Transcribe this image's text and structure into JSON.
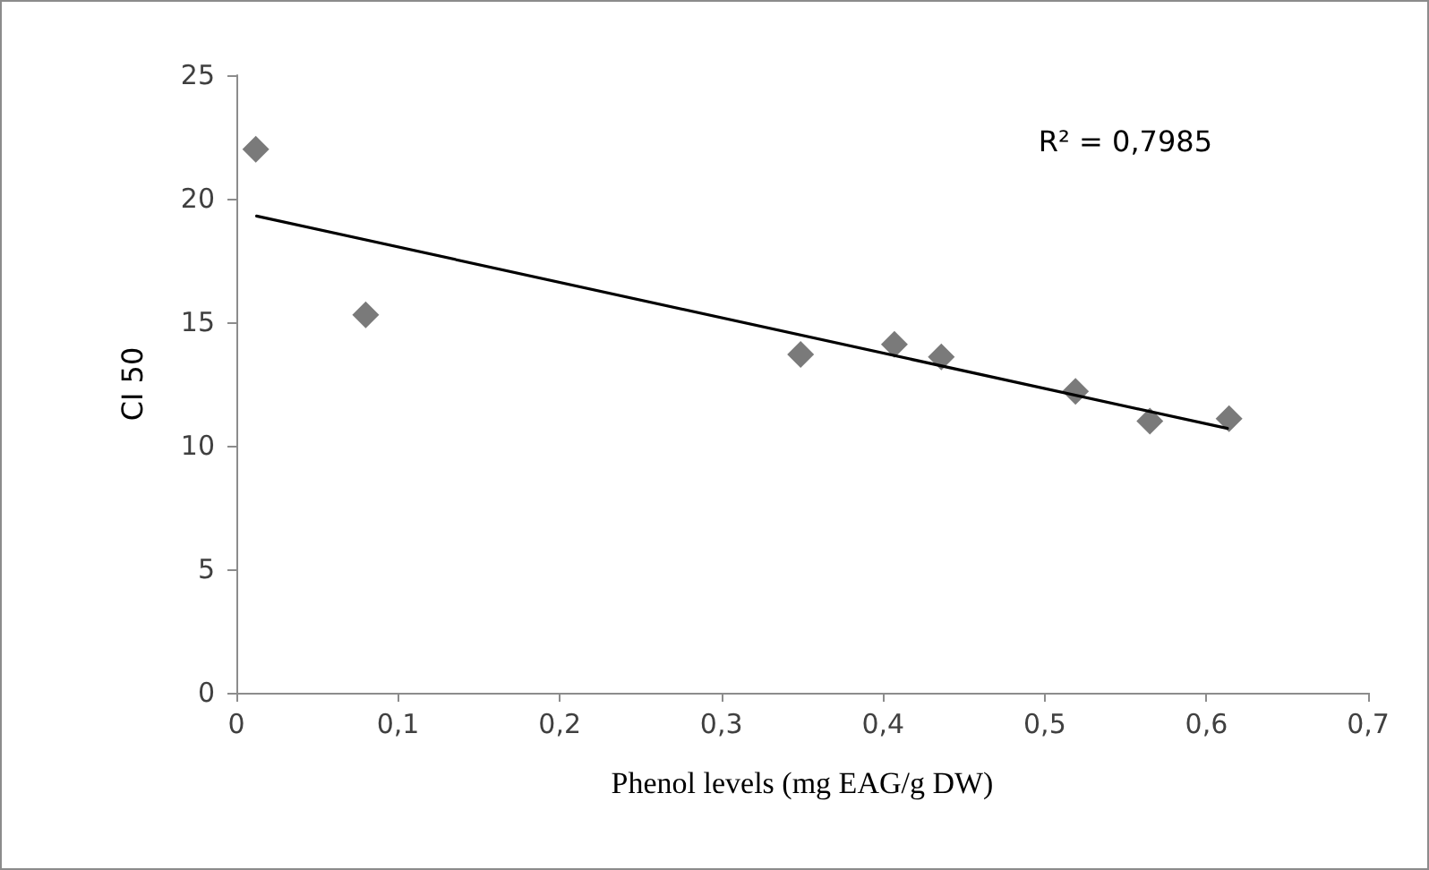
{
  "chart_data": {
    "type": "scatter",
    "xlabel": "Phenol levels (mg EAG/g DW)",
    "ylabel": "CI 50",
    "annotations": [
      "R² = 0,7985"
    ],
    "xlim": [
      0,
      0.7
    ],
    "xticks": [
      {
        "value": 0,
        "label": "0"
      },
      {
        "value": 0.1,
        "label": "0,1"
      },
      {
        "value": 0.2,
        "label": "0,2"
      },
      {
        "value": 0.3,
        "label": "0,3"
      },
      {
        "value": 0.4,
        "label": "0,4"
      },
      {
        "value": 0.5,
        "label": "0,5"
      },
      {
        "value": 0.6,
        "label": "0,6"
      },
      {
        "value": 0.7,
        "label": "0,7"
      }
    ],
    "ylim": [
      0,
      25
    ],
    "yticks": [
      0,
      5,
      10,
      15,
      20,
      25
    ],
    "grid": false,
    "marker": "diamond",
    "series": [
      {
        "color": "#595959",
        "x": [
          0.012,
          0.08,
          0.349,
          0.407,
          0.436,
          0.519,
          0.565,
          0.614
        ],
        "values": [
          22.0,
          15.3,
          13.7,
          14.1,
          13.6,
          12.2,
          11.0,
          11.1
        ]
      },
      {
        "type": "line",
        "color": "#000000",
        "marker": "none",
        "line_style": "solid",
        "x": [
          0.0125,
          0.613
        ],
        "values": [
          19.3,
          10.7
        ]
      }
    ]
  }
}
